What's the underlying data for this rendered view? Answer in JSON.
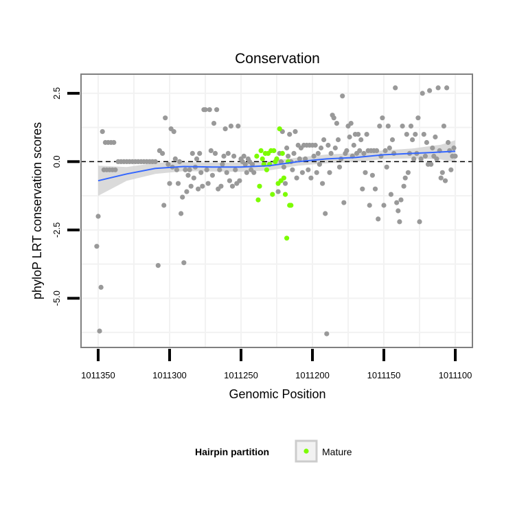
{
  "chart_data": {
    "type": "scatter",
    "title": "Conservation",
    "xlabel": "Genomic Position",
    "ylabel": "phyloP LRT conservation scores",
    "x_reversed": true,
    "xlim": [
      1011362,
      1011088
    ],
    "ylim": [
      -6.8,
      3.2
    ],
    "x_ticks": [
      1011350,
      1011300,
      1011250,
      1011200,
      1011150,
      1011100
    ],
    "x_tick_labels": [
      "1011350",
      "1011300",
      "1011250",
      "1011200",
      "1011150",
      "1011100"
    ],
    "y_ticks": [
      2.5,
      0.0,
      -2.5,
      -5.0
    ],
    "y_tick_labels": [
      "2.5",
      "0.0",
      "-2.5",
      "-5.0"
    ],
    "hline": 0,
    "grid": true,
    "legend": {
      "title": "Hairpin partition",
      "position": "bottom",
      "entries": [
        {
          "label": "Mature",
          "color": "#7cfc00"
        }
      ]
    },
    "colors": {
      "other": "#999999",
      "mature": "#7cfc00",
      "smooth": "#3366ff",
      "band": "#d3d3d3",
      "panel_border": "#7f7f7f",
      "grid": "#f2f2f2"
    },
    "series": [
      {
        "group": "other",
        "points": [
          [
            1011351,
            -3.1
          ],
          [
            1011350,
            -2.0
          ],
          [
            1011349,
            -6.2
          ],
          [
            1011348,
            -4.6
          ],
          [
            1011347,
            1.1
          ],
          [
            1011346,
            -0.3
          ],
          [
            1011345,
            0.7
          ],
          [
            1011344,
            -0.3
          ],
          [
            1011343,
            0.7
          ],
          [
            1011342,
            -0.3
          ],
          [
            1011341,
            0.7
          ],
          [
            1011340,
            -0.3
          ],
          [
            1011339,
            0.7
          ],
          [
            1011338,
            -0.3
          ],
          [
            1011336,
            0.0
          ],
          [
            1011334,
            0.0
          ],
          [
            1011332,
            0.0
          ],
          [
            1011330,
            0.0
          ],
          [
            1011328,
            0.0
          ],
          [
            1011326,
            0.0
          ],
          [
            1011324,
            0.0
          ],
          [
            1011322,
            0.0
          ],
          [
            1011320,
            0.0
          ],
          [
            1011318,
            0.0
          ],
          [
            1011316,
            0.0
          ],
          [
            1011314,
            0.0
          ],
          [
            1011312,
            0.0
          ],
          [
            1011310,
            0.0
          ],
          [
            1011308,
            -3.8
          ],
          [
            1011307,
            0.4
          ],
          [
            1011305,
            0.3
          ],
          [
            1011304,
            -1.6
          ],
          [
            1011303,
            1.6
          ],
          [
            1011301,
            -0.1
          ],
          [
            1011300,
            -0.8
          ],
          [
            1011299,
            1.2
          ],
          [
            1011298,
            -0.2
          ],
          [
            1011297,
            1.1
          ],
          [
            1011296,
            0.1
          ],
          [
            1011295,
            -0.3
          ],
          [
            1011294,
            -0.8
          ],
          [
            1011293,
            0.0
          ],
          [
            1011292,
            -1.9
          ],
          [
            1011291,
            -1.3
          ],
          [
            1011290,
            -3.7
          ],
          [
            1011289,
            -0.3
          ],
          [
            1011288,
            -1.1
          ],
          [
            1011287,
            -0.5
          ],
          [
            1011286,
            -0.3
          ],
          [
            1011285,
            -0.9
          ],
          [
            1011284,
            0.3
          ],
          [
            1011283,
            -0.6
          ],
          [
            1011282,
            -0.2
          ],
          [
            1011281,
            0.1
          ],
          [
            1011280,
            -1.0
          ],
          [
            1011279,
            0.3
          ],
          [
            1011278,
            -0.4
          ],
          [
            1011277,
            -0.9
          ],
          [
            1011276,
            1.9
          ],
          [
            1011275,
            1.9
          ],
          [
            1011274,
            -0.3
          ],
          [
            1011273,
            -0.8
          ],
          [
            1011272,
            1.9
          ],
          [
            1011271,
            0.4
          ],
          [
            1011270,
            -0.5
          ],
          [
            1011269,
            1.4
          ],
          [
            1011268,
            0.3
          ],
          [
            1011267,
            1.9
          ],
          [
            1011266,
            -1.0
          ],
          [
            1011265,
            -0.3
          ],
          [
            1011264,
            -0.9
          ],
          [
            1011263,
            -0.1
          ],
          [
            1011262,
            0.2
          ],
          [
            1011261,
            1.2
          ],
          [
            1011260,
            -0.4
          ],
          [
            1011259,
            0.3
          ],
          [
            1011258,
            -0.7
          ],
          [
            1011257,
            1.3
          ],
          [
            1011256,
            -0.9
          ],
          [
            1011255,
            0.2
          ],
          [
            1011254,
            -0.3
          ],
          [
            1011253,
            -0.8
          ],
          [
            1011252,
            1.3
          ],
          [
            1011251,
            -0.7
          ],
          [
            1011250,
            0.1
          ],
          [
            1011249,
            0.0
          ],
          [
            1011248,
            0.2
          ],
          [
            1011247,
            -0.1
          ],
          [
            1011246,
            -0.4
          ],
          [
            1011245,
            0.1
          ],
          [
            1011244,
            0.0
          ],
          [
            1011243,
            -0.3
          ],
          [
            1011242,
            -0.1
          ],
          [
            1011241,
            -0.4
          ],
          [
            1011225,
            0.1
          ],
          [
            1011224,
            -1.1
          ],
          [
            1011223,
            0.3
          ],
          [
            1011222,
            0.0
          ],
          [
            1011221,
            1.1
          ],
          [
            1011220,
            -0.2
          ],
          [
            1011219,
            -0.8
          ],
          [
            1011218,
            0.5
          ],
          [
            1011217,
            0.2
          ],
          [
            1011216,
            1.0
          ],
          [
            1011215,
            0.0
          ],
          [
            1011214,
            -0.3
          ],
          [
            1011213,
            0.3
          ],
          [
            1011212,
            1.1
          ],
          [
            1011211,
            -0.6
          ],
          [
            1011210,
            0.6
          ],
          [
            1011209,
            0.1
          ],
          [
            1011208,
            0.5
          ],
          [
            1011207,
            -0.4
          ],
          [
            1011206,
            0.6
          ],
          [
            1011205,
            0.1
          ],
          [
            1011204,
            0.6
          ],
          [
            1011203,
            -0.3
          ],
          [
            1011202,
            0.6
          ],
          [
            1011201,
            -0.6
          ],
          [
            1011200,
            0.6
          ],
          [
            1011199,
            0.2
          ],
          [
            1011198,
            0.6
          ],
          [
            1011197,
            -0.4
          ],
          [
            1011196,
            0.3
          ],
          [
            1011195,
            -0.1
          ],
          [
            1011194,
            0.5
          ],
          [
            1011193,
            -0.8
          ],
          [
            1011192,
            0.8
          ],
          [
            1011191,
            -1.9
          ],
          [
            1011190,
            -6.3
          ],
          [
            1011189,
            0.6
          ],
          [
            1011188,
            -0.4
          ],
          [
            1011187,
            0.3
          ],
          [
            1011186,
            1.7
          ],
          [
            1011185,
            1.6
          ],
          [
            1011184,
            0.5
          ],
          [
            1011183,
            1.4
          ],
          [
            1011182,
            0.8
          ],
          [
            1011181,
            -0.2
          ],
          [
            1011180,
            0.1
          ],
          [
            1011179,
            2.4
          ],
          [
            1011178,
            -1.5
          ],
          [
            1011177,
            0.3
          ],
          [
            1011176,
            0.4
          ],
          [
            1011175,
            1.3
          ],
          [
            1011174,
            0.9
          ],
          [
            1011173,
            1.4
          ],
          [
            1011172,
            0.2
          ],
          [
            1011171,
            0.6
          ],
          [
            1011170,
            1.0
          ],
          [
            1011169,
            0.3
          ],
          [
            1011168,
            1.0
          ],
          [
            1011167,
            0.4
          ],
          [
            1011166,
            0.8
          ],
          [
            1011165,
            -1.0
          ],
          [
            1011164,
            0.3
          ],
          [
            1011163,
            -0.4
          ],
          [
            1011162,
            1.0
          ],
          [
            1011161,
            0.4
          ],
          [
            1011160,
            -1.6
          ],
          [
            1011159,
            0.4
          ],
          [
            1011158,
            -0.5
          ],
          [
            1011157,
            0.4
          ],
          [
            1011156,
            -1.0
          ],
          [
            1011155,
            0.4
          ],
          [
            1011154,
            -2.1
          ],
          [
            1011153,
            1.3
          ],
          [
            1011152,
            0.2
          ],
          [
            1011151,
            1.6
          ],
          [
            1011150,
            -1.6
          ],
          [
            1011149,
            0.4
          ],
          [
            1011148,
            -0.2
          ],
          [
            1011147,
            1.3
          ],
          [
            1011146,
            0.5
          ],
          [
            1011145,
            -1.2
          ],
          [
            1011144,
            0.8
          ],
          [
            1011143,
            0.3
          ],
          [
            1011142,
            2.7
          ],
          [
            1011141,
            -1.5
          ],
          [
            1011140,
            -1.8
          ],
          [
            1011139,
            -2.2
          ],
          [
            1011138,
            -1.4
          ],
          [
            1011137,
            1.3
          ],
          [
            1011136,
            -0.9
          ],
          [
            1011135,
            -0.6
          ],
          [
            1011134,
            1.0
          ],
          [
            1011133,
            -0.4
          ],
          [
            1011132,
            0.3
          ],
          [
            1011131,
            1.3
          ],
          [
            1011130,
            0.8
          ],
          [
            1011129,
            0.1
          ],
          [
            1011128,
            1.0
          ],
          [
            1011127,
            0.3
          ],
          [
            1011126,
            1.6
          ],
          [
            1011125,
            -2.2
          ],
          [
            1011124,
            0.1
          ],
          [
            1011123,
            2.5
          ],
          [
            1011122,
            1.0
          ],
          [
            1011121,
            0.2
          ],
          [
            1011120,
            0.7
          ],
          [
            1011119,
            -0.1
          ],
          [
            1011118,
            2.6
          ],
          [
            1011117,
            -0.1
          ],
          [
            1011116,
            0.5
          ],
          [
            1011115,
            0.2
          ],
          [
            1011114,
            0.9
          ],
          [
            1011113,
            0.1
          ],
          [
            1011112,
            2.7
          ],
          [
            1011111,
            0.4
          ],
          [
            1011110,
            -0.6
          ],
          [
            1011109,
            -0.4
          ],
          [
            1011108,
            1.3
          ],
          [
            1011107,
            -0.7
          ],
          [
            1011106,
            2.7
          ],
          [
            1011105,
            0.7
          ],
          [
            1011104,
            0.4
          ],
          [
            1011103,
            -0.3
          ],
          [
            1011102,
            0.2
          ],
          [
            1011101,
            0.5
          ],
          [
            1011100,
            0.2
          ]
        ]
      },
      {
        "group": "Mature",
        "points": [
          [
            1011239,
            0.2
          ],
          [
            1011238,
            -1.4
          ],
          [
            1011237,
            -0.9
          ],
          [
            1011236,
            0.4
          ],
          [
            1011235,
            0.1
          ],
          [
            1011234,
            -0.1
          ],
          [
            1011233,
            0.3
          ],
          [
            1011232,
            -0.3
          ],
          [
            1011231,
            0.3
          ],
          [
            1011230,
            -0.1
          ],
          [
            1011229,
            0.4
          ],
          [
            1011228,
            -1.2
          ],
          [
            1011227,
            0.4
          ],
          [
            1011226,
            0.0
          ],
          [
            1011225,
            0.1
          ],
          [
            1011224,
            -0.8
          ],
          [
            1011223,
            1.2
          ],
          [
            1011222,
            -0.7
          ],
          [
            1011221,
            0.3
          ],
          [
            1011220,
            -0.6
          ],
          [
            1011219,
            -1.2
          ],
          [
            1011218,
            -2.8
          ],
          [
            1011217,
            0.0
          ],
          [
            1011216,
            -1.6
          ],
          [
            1011215,
            -1.6
          ]
        ]
      }
    ],
    "smooth": {
      "method": "loess",
      "points": [
        [
          1011350,
          -0.7
        ],
        [
          1011330,
          -0.45
        ],
        [
          1011310,
          -0.25
        ],
        [
          1011290,
          -0.18
        ],
        [
          1011270,
          -0.2
        ],
        [
          1011250,
          -0.2
        ],
        [
          1011230,
          -0.15
        ],
        [
          1011210,
          0.0
        ],
        [
          1011190,
          0.1
        ],
        [
          1011170,
          0.15
        ],
        [
          1011150,
          0.25
        ],
        [
          1011130,
          0.3
        ],
        [
          1011110,
          0.35
        ],
        [
          1011100,
          0.38
        ]
      ],
      "band": [
        [
          1011350,
          -1.25,
          -0.15
        ],
        [
          1011330,
          -0.7,
          -0.2
        ],
        [
          1011310,
          -0.45,
          -0.05
        ],
        [
          1011290,
          -0.35,
          -0.02
        ],
        [
          1011270,
          -0.36,
          -0.04
        ],
        [
          1011250,
          -0.37,
          -0.04
        ],
        [
          1011230,
          -0.32,
          0.02
        ],
        [
          1011210,
          -0.15,
          0.15
        ],
        [
          1011190,
          -0.06,
          0.26
        ],
        [
          1011170,
          -0.01,
          0.31
        ],
        [
          1011150,
          0.09,
          0.41
        ],
        [
          1011130,
          0.12,
          0.48
        ],
        [
          1011110,
          0.08,
          0.62
        ],
        [
          1011100,
          -0.02,
          0.78
        ]
      ]
    }
  }
}
